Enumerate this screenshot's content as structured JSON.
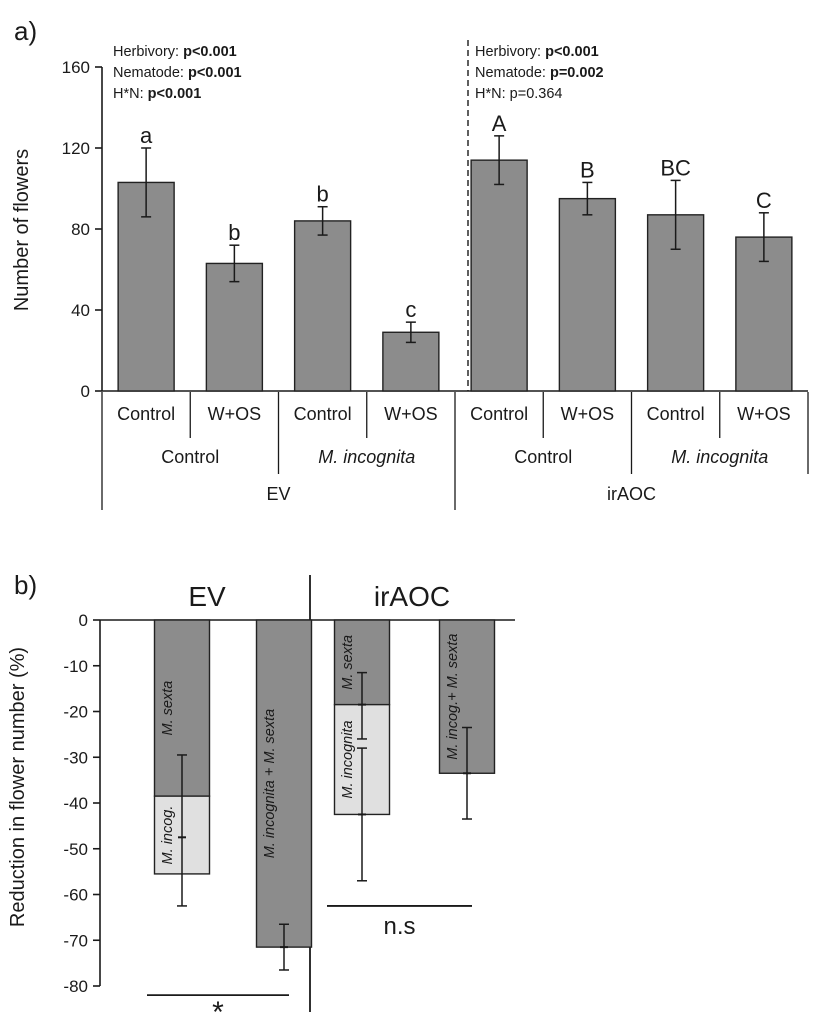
{
  "chart_data": [
    {
      "panel_label": "a)",
      "type": "bar",
      "ylabel": "Number of flowers",
      "ylim": [
        0,
        160
      ],
      "yticks": [
        0,
        40,
        80,
        120,
        160
      ],
      "grid": false,
      "colors": {
        "bar": "#8c8c8c",
        "stroke": "#222222"
      },
      "bars": [
        {
          "value": 103,
          "error": 17,
          "letter": "a",
          "treatment": "Control"
        },
        {
          "value": 63,
          "error": 9,
          "letter": "b",
          "treatment": "W+OS"
        },
        {
          "value": 84,
          "error": 7,
          "letter": "b",
          "treatment": "Control"
        },
        {
          "value": 29,
          "error": 5,
          "letter": "c",
          "treatment": "W+OS"
        },
        {
          "value": 114,
          "error": 12,
          "letter": "A",
          "treatment": "Control"
        },
        {
          "value": 95,
          "error": 8,
          "letter": "B",
          "treatment": "W+OS"
        },
        {
          "value": 87,
          "error": 17,
          "letter": "BC",
          "treatment": "Control"
        },
        {
          "value": 76,
          "error": 12,
          "letter": "C",
          "treatment": "W+OS"
        }
      ],
      "nematode_groups": [
        {
          "label": "Control",
          "italic": false
        },
        {
          "label": "M. incognita",
          "italic": true
        },
        {
          "label": "Control",
          "italic": false
        },
        {
          "label": "M. incognita",
          "italic": true
        }
      ],
      "genotypes": [
        "EV",
        "irAOC"
      ],
      "stats": [
        [
          {
            "prefix": "Herbivory: ",
            "value": "p<0.001",
            "bold": true
          },
          {
            "prefix": "Nematode: ",
            "value": "p<0.001",
            "bold": true
          },
          {
            "prefix": "H*N: ",
            "value": "p<0.001",
            "bold": true
          }
        ],
        [
          {
            "prefix": "Herbivory: ",
            "value": "p<0.001",
            "bold": true
          },
          {
            "prefix": "Nematode: ",
            "value": "p=0.002",
            "bold": true
          },
          {
            "prefix": "H*N: ",
            "value": "p=0.364",
            "bold": false
          }
        ]
      ]
    },
    {
      "panel_label": "b)",
      "type": "bar",
      "ylabel": "Reduction in flower number (%)",
      "ylim": [
        -80,
        0
      ],
      "yticks": [
        0,
        -10,
        -20,
        -30,
        -40,
        -50,
        -60,
        -70,
        -80
      ],
      "grid": false,
      "colors": {
        "dark": "#8c8c8c",
        "light": "#e0e0e0",
        "stroke": "#222222"
      },
      "genotypes": [
        "EV",
        "irAOC"
      ],
      "bars": [
        {
          "segments": [
            {
              "label": "M. sexta",
              "from": 0,
              "to": -38.5,
              "shade": "dark"
            },
            {
              "label": "M. incog.",
              "from": -38.5,
              "to": -55.5,
              "shade": "light"
            }
          ],
          "errors": [
            {
              "y": -47.5,
              "lo": -62.5,
              "hi": -29.5
            }
          ]
        },
        {
          "segments": [
            {
              "label": "M. incognita + M. sexta",
              "from": 0,
              "to": -71.5,
              "shade": "dark"
            }
          ],
          "errors": [
            {
              "y": -71.5,
              "lo": -76.5,
              "hi": -66.5
            }
          ]
        },
        {
          "segments": [
            {
              "label": "M. sexta",
              "from": 0,
              "to": -18.5,
              "shade": "dark"
            },
            {
              "label": "M. incognita",
              "from": -18.5,
              "to": -42.5,
              "shade": "light"
            }
          ],
          "errors": [
            {
              "y": -18.5,
              "lo": -26,
              "hi": -11.5
            },
            {
              "y": -42.5,
              "lo": -57,
              "hi": -28
            }
          ]
        },
        {
          "segments": [
            {
              "label": "M. incog.+ M. sexta",
              "from": 0,
              "to": -33.5,
              "shade": "dark"
            }
          ],
          "errors": [
            {
              "y": -33.5,
              "lo": -43.5,
              "hi": -23.5
            }
          ]
        }
      ],
      "significance": [
        {
          "label": "*",
          "bars": [
            0,
            1
          ],
          "level": -82
        },
        {
          "label": "n.s",
          "bars": [
            2,
            3
          ],
          "level": -62.5
        }
      ]
    }
  ]
}
